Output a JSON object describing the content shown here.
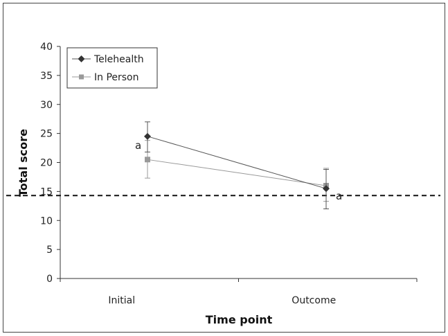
{
  "chart_data": {
    "type": "line",
    "title": "",
    "xlabel": "Time point",
    "ylabel": "Total score",
    "categories": [
      "Initial",
      "Outcome"
    ],
    "ylim": [
      0,
      40
    ],
    "yticks": [
      0,
      5,
      10,
      15,
      20,
      25,
      30,
      35,
      40
    ],
    "legend_position": "top-left",
    "grid": false,
    "series": [
      {
        "name": "Telehealth",
        "marker": "diamond",
        "color": "#555555",
        "values": [
          24.5,
          15.5
        ],
        "error_low": [
          21.8,
          12.0
        ],
        "error_high": [
          27.0,
          18.8
        ]
      },
      {
        "name": "In Person",
        "marker": "square",
        "color": "#999999",
        "values": [
          20.5,
          16.0
        ],
        "error_low": [
          17.3,
          13.3
        ],
        "error_high": [
          23.8,
          19.0
        ]
      }
    ],
    "reference_line": {
      "value": 14.3,
      "style": "dashed",
      "color": "#111111"
    },
    "annotations": [
      {
        "text": "a",
        "category": "Initial",
        "series": "Telehealth"
      },
      {
        "text": "a",
        "category": "Outcome",
        "series": "Telehealth"
      }
    ]
  }
}
